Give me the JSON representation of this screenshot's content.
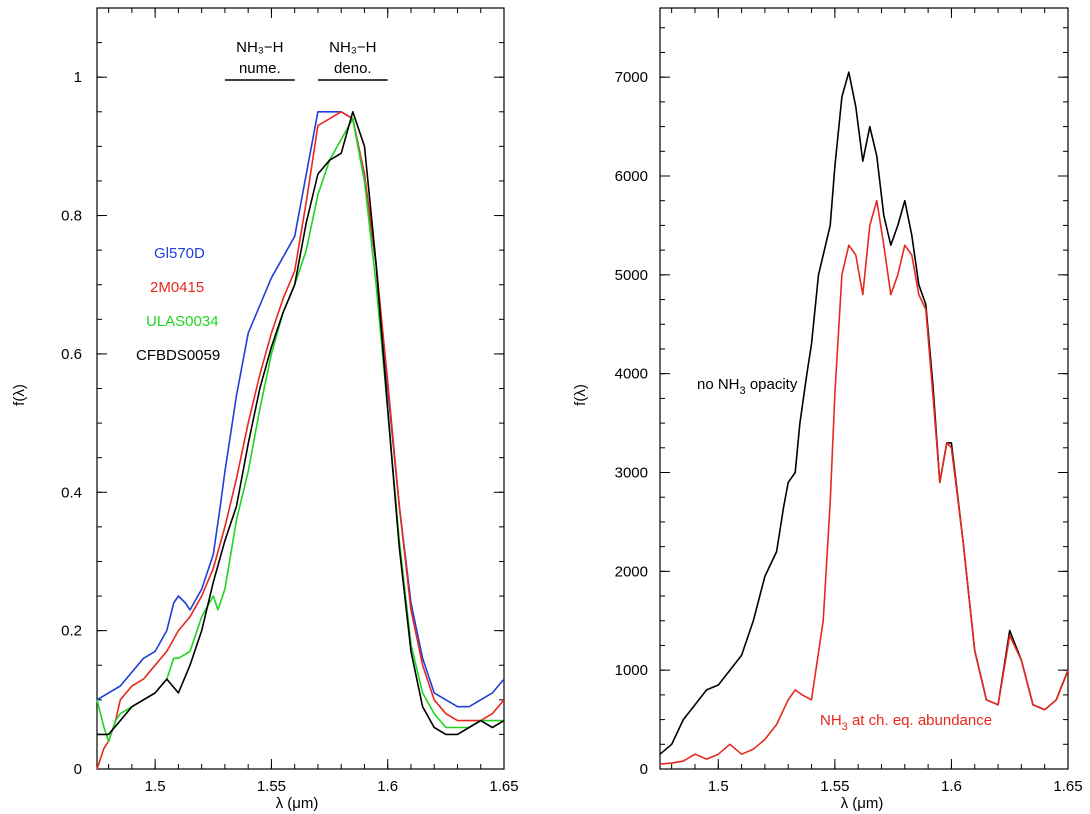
{
  "chart_data": [
    {
      "type": "line",
      "xlabel": "λ (μm)",
      "ylabel": "f(λ)",
      "xlim": [
        1.475,
        1.65
      ],
      "ylim": [
        0,
        1.1
      ],
      "xticks": [
        1.5,
        1.55,
        1.6,
        1.65
      ],
      "xtick_labels": [
        "1.5",
        "1.55",
        "1.6",
        "1.65"
      ],
      "yticks": [
        0,
        0.2,
        0.4,
        0.6,
        0.8,
        1.0
      ],
      "ytick_labels": [
        "0",
        "0.2",
        "0.4",
        "0.6",
        "0.8",
        "1"
      ],
      "bands": [
        {
          "label_line1": "NH₃−H",
          "label_line2": "nume.",
          "range": [
            1.53,
            1.56
          ]
        },
        {
          "label_line1": "NH₃−H",
          "label_line2": "deno.",
          "range": [
            1.57,
            1.6
          ]
        }
      ],
      "legend": [
        {
          "label": "Gl570D",
          "color": "#1f3fd6"
        },
        {
          "label": "2M0415",
          "color": "#e8281e"
        },
        {
          "label": "ULAS0034",
          "color": "#1ed61e"
        },
        {
          "label": "CFBDS0059",
          "color": "#000000"
        }
      ],
      "series": [
        {
          "name": "Gl570D",
          "color": "#1f3fd6",
          "x": [
            1.475,
            1.48,
            1.485,
            1.49,
            1.495,
            1.5,
            1.505,
            1.508,
            1.51,
            1.513,
            1.515,
            1.52,
            1.525,
            1.528,
            1.53,
            1.535,
            1.54,
            1.545,
            1.55,
            1.555,
            1.56,
            1.565,
            1.57,
            1.575,
            1.58,
            1.585,
            1.59,
            1.595,
            1.6,
            1.605,
            1.61,
            1.615,
            1.62,
            1.625,
            1.63,
            1.635,
            1.64,
            1.645,
            1.65
          ],
          "y": [
            0.1,
            0.11,
            0.12,
            0.14,
            0.16,
            0.17,
            0.2,
            0.24,
            0.25,
            0.24,
            0.23,
            0.26,
            0.31,
            0.38,
            0.43,
            0.54,
            0.63,
            0.67,
            0.71,
            0.74,
            0.77,
            0.86,
            0.95,
            0.95,
            0.95,
            0.94,
            0.85,
            0.73,
            0.55,
            0.38,
            0.24,
            0.16,
            0.11,
            0.1,
            0.09,
            0.09,
            0.1,
            0.11,
            0.13
          ]
        },
        {
          "name": "2M0415",
          "color": "#e8281e",
          "x": [
            1.475,
            1.478,
            1.48,
            1.483,
            1.485,
            1.49,
            1.495,
            1.5,
            1.505,
            1.51,
            1.515,
            1.52,
            1.525,
            1.53,
            1.535,
            1.54,
            1.545,
            1.55,
            1.555,
            1.56,
            1.565,
            1.57,
            1.575,
            1.58,
            1.585,
            1.59,
            1.595,
            1.6,
            1.605,
            1.61,
            1.615,
            1.62,
            1.625,
            1.63,
            1.635,
            1.64,
            1.645,
            1.65
          ],
          "y": [
            0.0,
            0.03,
            0.04,
            0.07,
            0.1,
            0.12,
            0.13,
            0.15,
            0.17,
            0.2,
            0.22,
            0.25,
            0.29,
            0.35,
            0.42,
            0.5,
            0.57,
            0.63,
            0.68,
            0.72,
            0.82,
            0.93,
            0.94,
            0.95,
            0.94,
            0.86,
            0.73,
            0.56,
            0.38,
            0.23,
            0.15,
            0.1,
            0.08,
            0.07,
            0.07,
            0.07,
            0.08,
            0.1
          ]
        },
        {
          "name": "ULAS0034",
          "color": "#1ed61e",
          "x": [
            1.475,
            1.478,
            1.48,
            1.483,
            1.485,
            1.49,
            1.495,
            1.5,
            1.505,
            1.508,
            1.51,
            1.515,
            1.52,
            1.525,
            1.527,
            1.53,
            1.535,
            1.54,
            1.545,
            1.55,
            1.555,
            1.56,
            1.565,
            1.57,
            1.575,
            1.58,
            1.585,
            1.59,
            1.595,
            1.6,
            1.605,
            1.61,
            1.615,
            1.62,
            1.625,
            1.63,
            1.635,
            1.64,
            1.645,
            1.65
          ],
          "y": [
            0.1,
            0.06,
            0.04,
            0.07,
            0.08,
            0.09,
            0.1,
            0.11,
            0.13,
            0.16,
            0.16,
            0.17,
            0.22,
            0.25,
            0.23,
            0.26,
            0.36,
            0.43,
            0.52,
            0.6,
            0.66,
            0.7,
            0.75,
            0.83,
            0.88,
            0.91,
            0.94,
            0.85,
            0.7,
            0.52,
            0.33,
            0.18,
            0.11,
            0.08,
            0.06,
            0.06,
            0.06,
            0.07,
            0.07,
            0.07
          ]
        },
        {
          "name": "CFBDS0059",
          "color": "#000000",
          "x": [
            1.475,
            1.48,
            1.485,
            1.49,
            1.495,
            1.5,
            1.505,
            1.51,
            1.515,
            1.52,
            1.525,
            1.53,
            1.535,
            1.54,
            1.545,
            1.55,
            1.555,
            1.56,
            1.565,
            1.57,
            1.575,
            1.58,
            1.585,
            1.59,
            1.595,
            1.6,
            1.605,
            1.61,
            1.615,
            1.62,
            1.625,
            1.63,
            1.635,
            1.64,
            1.645,
            1.65
          ],
          "y": [
            0.05,
            0.05,
            0.07,
            0.09,
            0.1,
            0.11,
            0.13,
            0.11,
            0.15,
            0.2,
            0.27,
            0.33,
            0.38,
            0.47,
            0.55,
            0.61,
            0.66,
            0.7,
            0.79,
            0.86,
            0.88,
            0.89,
            0.95,
            0.9,
            0.73,
            0.52,
            0.32,
            0.17,
            0.09,
            0.06,
            0.05,
            0.05,
            0.06,
            0.07,
            0.06,
            0.07
          ]
        }
      ]
    },
    {
      "type": "line",
      "xlabel": "λ (μm)",
      "ylabel": "f(λ)",
      "xlim": [
        1.475,
        1.65
      ],
      "ylim": [
        0,
        7700
      ],
      "xticks": [
        1.5,
        1.55,
        1.6,
        1.65
      ],
      "xtick_labels": [
        "1.5",
        "1.55",
        "1.6",
        "1.65"
      ],
      "yticks": [
        0,
        1000,
        2000,
        3000,
        4000,
        5000,
        6000,
        7000
      ],
      "ytick_labels": [
        "0",
        "1000",
        "2000",
        "3000",
        "4000",
        "5000",
        "6000",
        "7000"
      ],
      "annotations": [
        {
          "text_pre": "no NH",
          "text_sub": "3",
          "text_post": " opacity",
          "color": "#000000"
        },
        {
          "text_pre": "NH",
          "text_sub": "3",
          "text_post": " at ch. eq. abundance",
          "color": "#e8281e"
        }
      ],
      "series": [
        {
          "name": "no NH3 opacity",
          "color": "#000000",
          "x": [
            1.475,
            1.48,
            1.485,
            1.49,
            1.495,
            1.5,
            1.505,
            1.51,
            1.515,
            1.52,
            1.522,
            1.525,
            1.528,
            1.53,
            1.533,
            1.535,
            1.538,
            1.54,
            1.543,
            1.545,
            1.548,
            1.55,
            1.553,
            1.556,
            1.559,
            1.562,
            1.565,
            1.568,
            1.571,
            1.574,
            1.577,
            1.58,
            1.583,
            1.586,
            1.589,
            1.592,
            1.595,
            1.598,
            1.6,
            1.605,
            1.61,
            1.615,
            1.62,
            1.625,
            1.63,
            1.635,
            1.64,
            1.645,
            1.65
          ],
          "y": [
            150,
            250,
            500,
            650,
            800,
            850,
            1000,
            1150,
            1500,
            1950,
            2050,
            2200,
            2650,
            2900,
            3000,
            3500,
            4000,
            4300,
            5000,
            5200,
            5500,
            6100,
            6800,
            7050,
            6700,
            6150,
            6500,
            6200,
            5600,
            5300,
            5500,
            5750,
            5400,
            4900,
            4700,
            3900,
            2900,
            3300,
            3300,
            2300,
            1200,
            700,
            650,
            1400,
            1100,
            650,
            600,
            700,
            1000
          ]
        },
        {
          "name": "NH3 at ch. eq. abundance",
          "color": "#e8281e",
          "x": [
            1.475,
            1.48,
            1.485,
            1.49,
            1.495,
            1.5,
            1.505,
            1.51,
            1.515,
            1.52,
            1.525,
            1.53,
            1.533,
            1.536,
            1.54,
            1.545,
            1.548,
            1.55,
            1.553,
            1.556,
            1.559,
            1.562,
            1.565,
            1.568,
            1.571,
            1.574,
            1.577,
            1.58,
            1.583,
            1.586,
            1.589,
            1.592,
            1.595,
            1.598,
            1.6,
            1.605,
            1.61,
            1.615,
            1.62,
            1.625,
            1.63,
            1.635,
            1.64,
            1.645,
            1.65
          ],
          "y": [
            50,
            60,
            80,
            150,
            100,
            150,
            250,
            150,
            200,
            300,
            450,
            700,
            800,
            750,
            700,
            1500,
            2700,
            3800,
            5000,
            5300,
            5200,
            4800,
            5500,
            5750,
            5300,
            4800,
            5000,
            5300,
            5200,
            4800,
            4650,
            3800,
            2900,
            3300,
            3250,
            2300,
            1200,
            700,
            650,
            1350,
            1100,
            650,
            600,
            700,
            1000
          ]
        }
      ]
    }
  ]
}
